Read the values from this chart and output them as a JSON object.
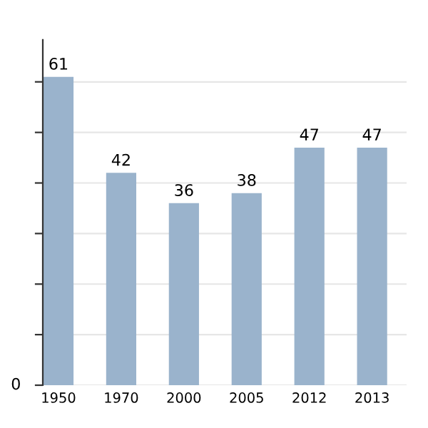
{
  "chart_data": {
    "type": "bar",
    "categories": [
      "1950",
      "1970",
      "2000",
      "2005",
      "2012",
      "2013"
    ],
    "values": [
      61,
      42,
      36,
      38,
      47,
      47
    ],
    "color": "#9ab3cc",
    "annotations": [
      "0"
    ],
    "grid": "y",
    "data_labels": true
  }
}
